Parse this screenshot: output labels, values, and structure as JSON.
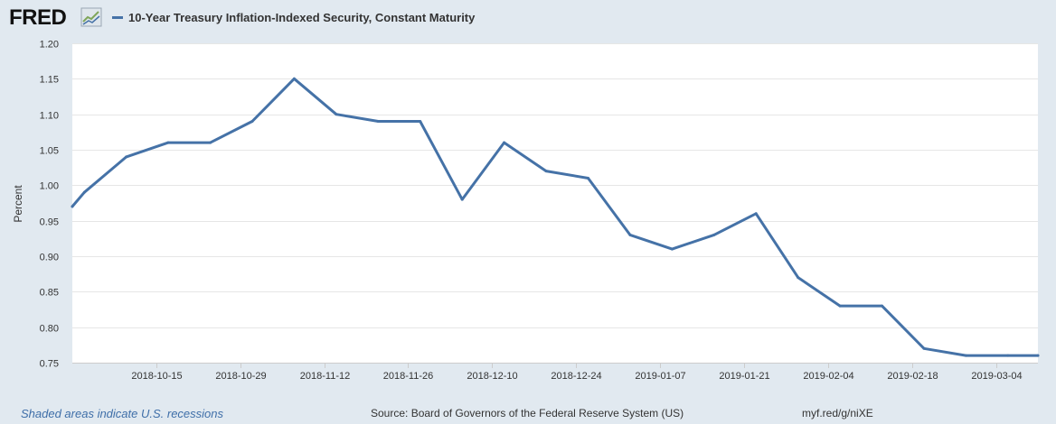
{
  "logo": {
    "text": "FRED",
    "icon": "chart-trend-icon"
  },
  "footer": {
    "recessions_note": "Shaded areas indicate U.S. recessions",
    "source": "Source: Board of Governors of the Federal Reserve System (US)",
    "short_url": "myf.red/g/niXE"
  },
  "colors": {
    "series": "#4572a7",
    "background": "#e1e9f0",
    "plot": "#ffffff",
    "grid": "#e6e6e6"
  },
  "chart_data": {
    "type": "line",
    "title": "",
    "xlabel": "",
    "ylabel": "Percent",
    "ylim": [
      0.75,
      1.2
    ],
    "yticks": [
      0.75,
      0.8,
      0.85,
      0.9,
      0.95,
      1.0,
      1.05,
      1.1,
      1.15,
      1.2
    ],
    "ytick_labels": [
      "0.75",
      "0.80",
      "0.85",
      "0.90",
      "0.95",
      "1.00",
      "1.05",
      "1.10",
      "1.15",
      "1.20"
    ],
    "x_start": "2018-10-01",
    "x_end": "2019-03-11",
    "xtick_labels": [
      "2018-10-15",
      "2018-10-29",
      "2018-11-12",
      "2018-11-26",
      "2018-12-10",
      "2018-12-24",
      "2019-01-07",
      "2019-01-21",
      "2019-02-04",
      "2019-02-18",
      "2019-03-04"
    ],
    "grid": true,
    "legend_position": "top-left",
    "series": [
      {
        "name": "10-Year Treasury Inflation-Indexed Security, Constant Maturity",
        "x": [
          "2018-10-01",
          "2018-10-03",
          "2018-10-10",
          "2018-10-17",
          "2018-10-24",
          "2018-10-31",
          "2018-11-07",
          "2018-11-14",
          "2018-11-21",
          "2018-11-28",
          "2018-12-05",
          "2018-12-12",
          "2018-12-19",
          "2018-12-26",
          "2019-01-02",
          "2019-01-09",
          "2019-01-16",
          "2019-01-23",
          "2019-01-30",
          "2019-02-06",
          "2019-02-13",
          "2019-02-20",
          "2019-02-27",
          "2019-03-06",
          "2019-03-11"
        ],
        "values": [
          0.97,
          0.99,
          1.04,
          1.06,
          1.06,
          1.09,
          1.15,
          1.1,
          1.09,
          1.09,
          0.98,
          1.06,
          1.02,
          1.01,
          0.93,
          0.91,
          0.93,
          0.96,
          0.87,
          0.83,
          0.83,
          0.77,
          0.76,
          0.76,
          0.76
        ]
      }
    ]
  }
}
